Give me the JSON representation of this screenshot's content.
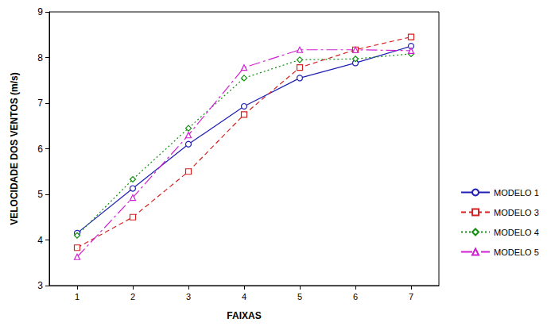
{
  "chart_data": {
    "type": "line",
    "x_label": "FAIXAS",
    "y_label": "VELOCIDADE DOS VENTOS (m/s)",
    "categories": [
      "1",
      "2",
      "3",
      "4",
      "5",
      "6",
      "7"
    ],
    "ylim": [
      3,
      9
    ],
    "yticks": [
      3,
      4,
      5,
      6,
      7,
      8,
      9
    ],
    "grid": false,
    "legend": "right",
    "series": [
      {
        "name": "MODELO 1",
        "color": "#1f1fb4",
        "marker": "circle",
        "line_style": "solid",
        "values": [
          4.15,
          5.13,
          6.1,
          6.93,
          7.55,
          7.88,
          8.25
        ]
      },
      {
        "name": "MODELO 3",
        "color": "#d42020",
        "marker": "square",
        "line_style": "dashed",
        "values": [
          3.83,
          4.5,
          5.5,
          6.75,
          7.78,
          8.17,
          8.45
        ]
      },
      {
        "name": "MODELO 4",
        "color": "#109010",
        "marker": "diamond",
        "line_style": "dotted",
        "values": [
          4.1,
          5.33,
          6.45,
          7.55,
          7.95,
          7.97,
          8.08
        ]
      },
      {
        "name": "MODELO 5",
        "color": "#d020d0",
        "marker": "triangle",
        "line_style": "dashdot",
        "values": [
          3.63,
          4.93,
          6.3,
          7.78,
          8.17,
          8.17,
          8.15
        ]
      }
    ]
  }
}
